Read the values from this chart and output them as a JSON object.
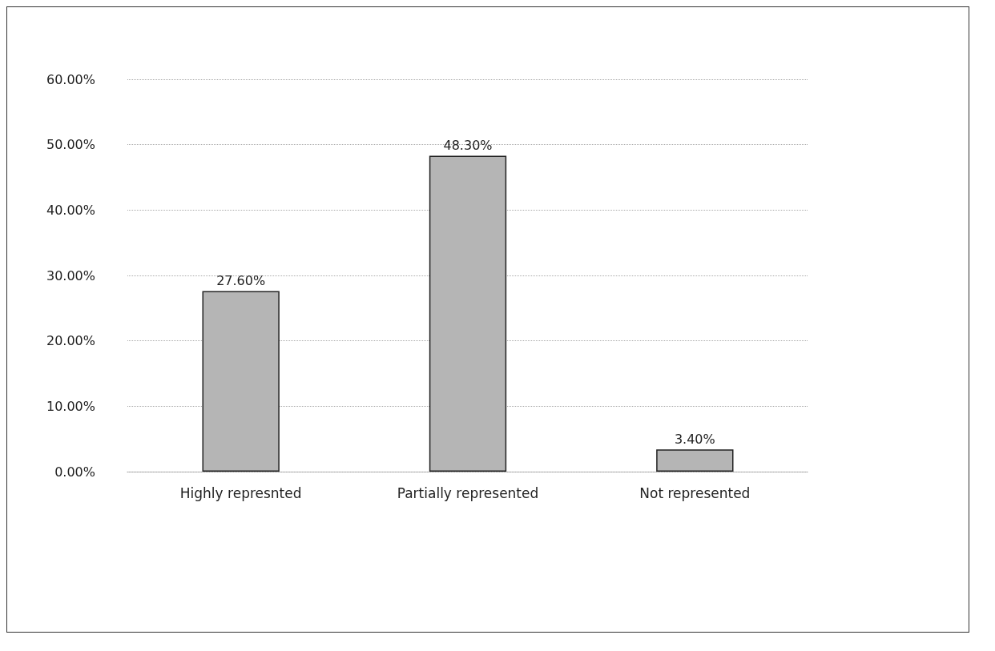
{
  "chart_data": {
    "type": "bar",
    "categories": [
      "Highly represnted",
      "Partially represented",
      "Not represented"
    ],
    "values": [
      27.6,
      48.3,
      3.4
    ],
    "value_labels": [
      "27.60%",
      "48.30%",
      "3.40%"
    ],
    "color": "#b5b5b5",
    "ylim": [
      0,
      60
    ],
    "yticks": [
      {
        "value": 0,
        "label": "0.00%"
      },
      {
        "value": 10,
        "label": "10.00%"
      },
      {
        "value": 20,
        "label": "20.00%"
      },
      {
        "value": 30,
        "label": "30.00%"
      },
      {
        "value": 40,
        "label": "40.00%"
      },
      {
        "value": 50,
        "label": "50.00%"
      },
      {
        "value": 60,
        "label": "60.00%"
      }
    ],
    "grid": "y"
  }
}
